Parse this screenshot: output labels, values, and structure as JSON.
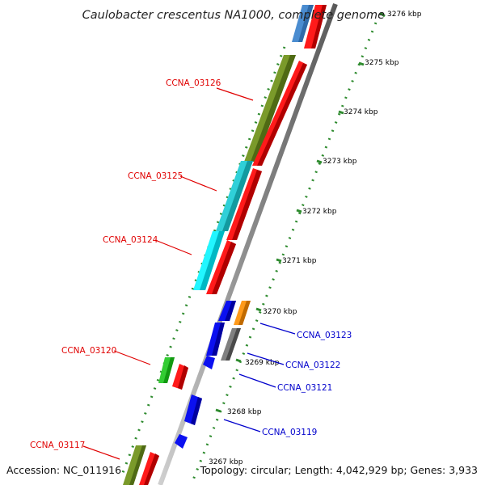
{
  "title": "Caulobacter crescentus NA1000, complete genome",
  "footer": {
    "accession": "Accession: NC_011916",
    "topology": "Topology: circular; Length: 4,042,929 bp; Genes: 3,933"
  },
  "colors": {
    "backbone": "#8c8c8c",
    "scale_dots": "#2e8b2e",
    "forward_label": "#e00000",
    "reverse_label": "#0000cc"
  },
  "scale": {
    "ticks": [
      "3276 kbp",
      "3275 kbp",
      "3274 kbp",
      "3273 kbp",
      "3272 kbp",
      "3271 kbp",
      "3270 kbp",
      "3269 kbp",
      "3268 kbp",
      "3267 kbp"
    ]
  },
  "genes": [
    {
      "label": "CCNA_03126",
      "strand": "forward",
      "color": "#6b8e23"
    },
    {
      "label": "CCNA_03125",
      "strand": "forward",
      "color": "#20c0c8"
    },
    {
      "label": "CCNA_03124",
      "strand": "forward",
      "color": "#00f0ff"
    },
    {
      "label": "CCNA_03120",
      "strand": "forward",
      "color": "#22bb22"
    },
    {
      "label": "CCNA_03117",
      "strand": "forward",
      "color": "#6b8e23"
    },
    {
      "label": "CCNA_03123",
      "strand": "reverse",
      "color": "#ff9900"
    },
    {
      "label": "CCNA_03122",
      "strand": "reverse",
      "color": "#707070"
    },
    {
      "label": "CCNA_03121",
      "strand": "reverse",
      "color": "#0000ee"
    },
    {
      "label": "CCNA_03119",
      "strand": "reverse",
      "color": "#0000ee"
    }
  ]
}
